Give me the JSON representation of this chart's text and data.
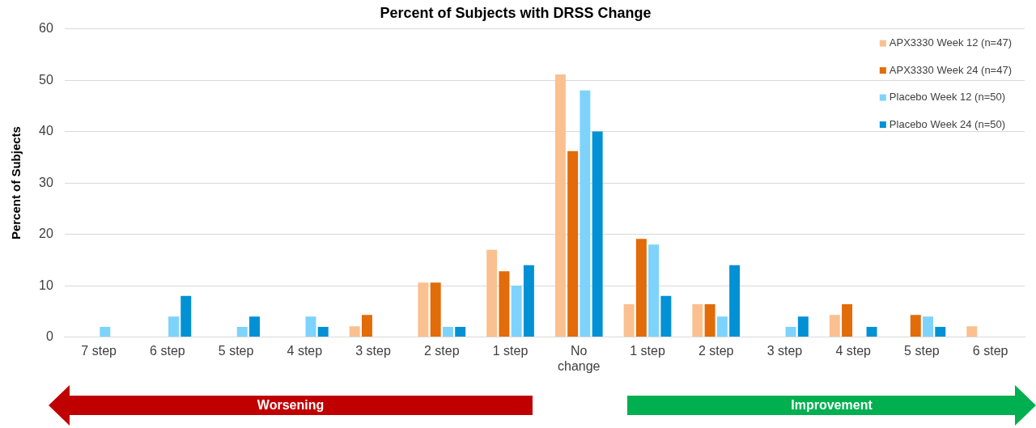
{
  "chart_data": {
    "type": "bar",
    "title": "Percent of Subjects with DRSS Change",
    "ylabel": "Percent of Subjects",
    "categories": [
      "7 step",
      "6 step",
      "5 step",
      "4 step",
      "3 step",
      "2 step",
      "1 step",
      "No change",
      "1 step",
      "2 step",
      "3 step",
      "4 step",
      "5 step",
      "6 step"
    ],
    "series": [
      {
        "name": "APX3330 Week 12 (n=47)",
        "color": "#fac090",
        "values": [
          0,
          0,
          0,
          0,
          2.1,
          10.6,
          17,
          51.1,
          6.4,
          6.4,
          0,
          4.3,
          0,
          2.1
        ]
      },
      {
        "name": "APX3330 Week 24 (n=47)",
        "color": "#e26b0a",
        "values": [
          0,
          0,
          0,
          0,
          4.3,
          10.6,
          12.8,
          36.2,
          19.1,
          6.4,
          0,
          6.4,
          4.3,
          0
        ]
      },
      {
        "name": "Placebo Week 12 (n=50)",
        "color": "#7dd3fb",
        "values": [
          2,
          4,
          2,
          4,
          0,
          2,
          10,
          48,
          18,
          4,
          2,
          0,
          4,
          0
        ]
      },
      {
        "name": "Placebo Week 24 (n=50)",
        "color": "#0291d4",
        "values": [
          0,
          8,
          4,
          2,
          0,
          2,
          14,
          40,
          8,
          14,
          4,
          2,
          2,
          0
        ]
      }
    ],
    "ylim": [
      0,
      60
    ],
    "yticks": [
      0,
      10,
      20,
      30,
      40,
      50,
      60
    ],
    "grid": "y",
    "legend": "top right",
    "annotations": [
      "Worsening",
      "Improvement"
    ]
  }
}
